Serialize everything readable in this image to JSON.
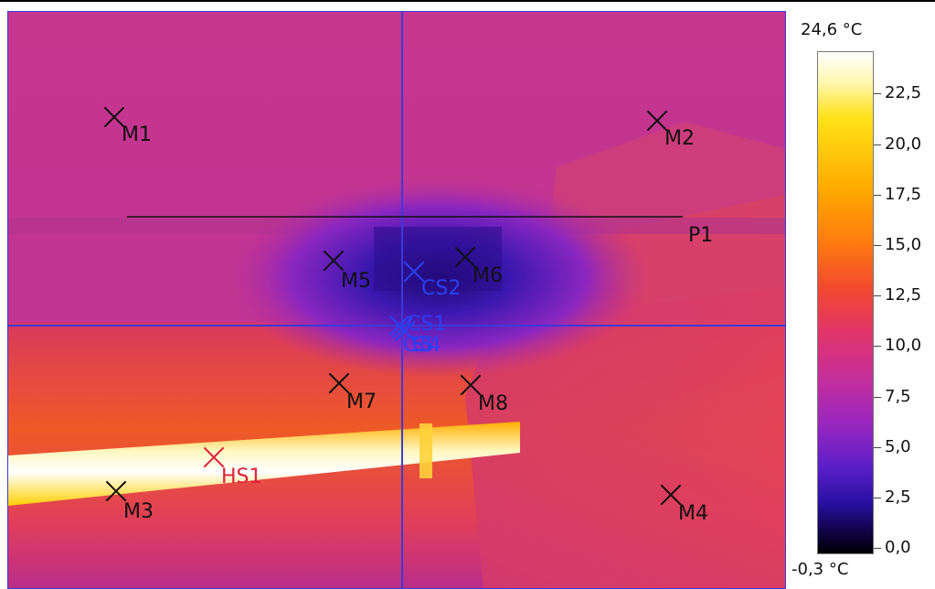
{
  "image": {
    "markers": [
      {
        "id": "m1",
        "label": "M1"
      },
      {
        "id": "m2",
        "label": "M2"
      },
      {
        "id": "m3",
        "label": "M3"
      },
      {
        "id": "m4",
        "label": "M4"
      },
      {
        "id": "m5",
        "label": "M5"
      },
      {
        "id": "m6",
        "label": "M6"
      },
      {
        "id": "m7",
        "label": "M7"
      },
      {
        "id": "m8",
        "label": "M8"
      }
    ],
    "hotspot": {
      "label": "HS1"
    },
    "coldspots": [
      {
        "label": "CS2"
      },
      {
        "label": "CS1"
      },
      {
        "label": "CS3"
      },
      {
        "label": "CS4"
      }
    ],
    "profile_line": {
      "label": "P1"
    },
    "colors": {
      "marker": "#111111",
      "coldspot": "#2a3ff0",
      "hotspot": "#e0203a",
      "crosshair": "#3a3ad8"
    }
  },
  "scale": {
    "max_label": "24,6 °C",
    "min_label": "-0,3 °C",
    "ticks": [
      {
        "value": 22.5,
        "label": "22,5"
      },
      {
        "value": 20.0,
        "label": "20,0"
      },
      {
        "value": 17.5,
        "label": "17,5"
      },
      {
        "value": 15.0,
        "label": "15,0"
      },
      {
        "value": 12.5,
        "label": "12,5"
      },
      {
        "value": 10.0,
        "label": "10,0"
      },
      {
        "value": 7.5,
        "label": "7,5"
      },
      {
        "value": 5.0,
        "label": "5,0"
      },
      {
        "value": 2.5,
        "label": "2,5"
      },
      {
        "value": 0.0,
        "label": "0,0"
      }
    ],
    "range": [
      -0.3,
      24.6
    ],
    "palette": "iron"
  }
}
